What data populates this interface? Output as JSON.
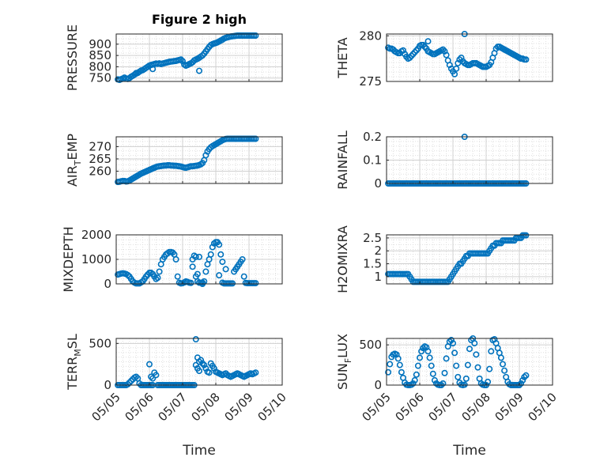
{
  "figure": {
    "title": "Figure 2 high",
    "xlabel": "Time",
    "time_ticks": [
      "05/05",
      "05/06",
      "05/07",
      "05/08",
      "05/09",
      "05/10"
    ],
    "marker_color": "#0072BD",
    "axes_color": "#262626",
    "grid_color": "#DFDFDF"
  },
  "chart_data": [
    {
      "type": "scatter",
      "panel": "pressure",
      "ylabel": "PRESSURE",
      "ylim": [
        735,
        945
      ],
      "yticks": [
        750,
        800,
        850,
        900
      ],
      "xlim": [
        0,
        5
      ],
      "grid": true,
      "x": [
        0.05,
        0.1,
        0.15,
        0.2,
        0.25,
        0.3,
        0.35,
        0.4,
        0.45,
        0.5,
        0.55,
        0.6,
        0.65,
        0.7,
        0.75,
        0.8,
        0.85,
        0.9,
        0.95,
        1.0,
        1.05,
        1.1,
        1.15,
        1.2,
        1.25,
        1.3,
        1.35,
        1.4,
        1.45,
        1.5,
        1.55,
        1.6,
        1.65,
        1.7,
        1.75,
        1.8,
        1.85,
        1.9,
        1.95,
        2.0,
        2.05,
        2.1,
        2.15,
        2.2,
        2.25,
        2.3,
        2.35,
        2.4,
        2.45,
        2.5,
        2.55,
        2.6,
        2.65,
        2.7,
        2.75,
        2.8,
        2.85,
        2.9,
        2.95,
        3.0,
        3.05,
        3.1,
        3.15,
        3.2,
        3.25,
        3.3,
        3.35,
        3.4,
        3.45,
        3.5,
        3.55,
        3.6,
        3.65,
        3.7,
        3.75,
        3.8,
        3.85,
        3.9,
        3.95,
        4.0,
        4.05,
        4.1,
        4.15,
        4.2,
        0.6,
        1.1,
        2.5
      ],
      "y": [
        744,
        742,
        745,
        748,
        752,
        748,
        746,
        750,
        756,
        760,
        765,
        770,
        773,
        778,
        783,
        785,
        790,
        795,
        800,
        805,
        808,
        810,
        812,
        814,
        813,
        815,
        812,
        814,
        816,
        818,
        820,
        822,
        823,
        824,
        825,
        826,
        828,
        830,
        832,
        825,
        810,
        805,
        808,
        812,
        815,
        820,
        828,
        832,
        835,
        840,
        845,
        850,
        858,
        868,
        878,
        888,
        896,
        900,
        903,
        905,
        908,
        912,
        916,
        920,
        925,
        928,
        930,
        932,
        934,
        935,
        936,
        937,
        938,
        938,
        938,
        938,
        938,
        938,
        938,
        938,
        938,
        938,
        938,
        938,
        772,
        790,
        782
      ]
    },
    {
      "type": "scatter",
      "panel": "theta",
      "ylabel": "THETA",
      "ylim": [
        275,
        280.2
      ],
      "yticks": [
        275,
        280
      ],
      "xlim": [
        0,
        5
      ],
      "grid": true,
      "x": [
        0.05,
        0.1,
        0.15,
        0.2,
        0.25,
        0.3,
        0.35,
        0.4,
        0.45,
        0.5,
        0.55,
        0.6,
        0.65,
        0.7,
        0.75,
        0.8,
        0.85,
        0.9,
        0.95,
        1.0,
        1.05,
        1.1,
        1.15,
        1.2,
        1.25,
        1.3,
        1.35,
        1.4,
        1.45,
        1.5,
        1.55,
        1.6,
        1.65,
        1.7,
        1.75,
        1.8,
        1.85,
        1.9,
        1.95,
        2.0,
        2.05,
        2.1,
        2.15,
        2.2,
        2.25,
        2.3,
        2.35,
        2.4,
        2.45,
        2.5,
        2.55,
        2.6,
        2.65,
        2.7,
        2.75,
        2.8,
        2.85,
        2.9,
        2.95,
        3.0,
        3.05,
        3.1,
        3.15,
        3.2,
        3.25,
        3.3,
        3.35,
        3.4,
        3.45,
        3.5,
        3.55,
        3.6,
        3.65,
        3.7,
        3.75,
        3.8,
        3.85,
        3.9,
        3.95,
        4.0,
        4.05,
        4.1,
        4.15,
        4.2,
        1.25,
        2.35
      ],
      "y": [
        278.7,
        278.6,
        278.6,
        278.5,
        278.3,
        278.2,
        278.1,
        278.1,
        278.3,
        278.4,
        278.0,
        277.7,
        277.5,
        277.6,
        277.8,
        278.0,
        278.2,
        278.4,
        278.6,
        278.9,
        279.0,
        279.0,
        278.8,
        278.6,
        278.3,
        278.2,
        278.1,
        278.0,
        278.0,
        278.1,
        278.2,
        278.3,
        278.4,
        278.5,
        278.3,
        277.9,
        277.3,
        276.8,
        276.4,
        276.1,
        275.8,
        276.4,
        277.0,
        277.4,
        277.6,
        277.2,
        277.0,
        276.9,
        276.8,
        276.8,
        276.9,
        277.0,
        277.0,
        277.0,
        276.9,
        276.8,
        276.7,
        276.6,
        276.6,
        276.6,
        276.7,
        276.8,
        277.1,
        277.6,
        278.1,
        278.6,
        278.8,
        278.8,
        278.7,
        278.6,
        278.5,
        278.4,
        278.3,
        278.2,
        278.1,
        278.0,
        277.9,
        277.8,
        277.7,
        277.6,
        277.5,
        277.5,
        277.4,
        277.4,
        279.4,
        280.2
      ]
    },
    {
      "type": "scatter",
      "panel": "air_temp",
      "ylabel": "AIR_TEMP",
      "ylim": [
        255,
        274
      ],
      "yticks": [
        260,
        265,
        270
      ],
      "xlim": [
        0,
        5
      ],
      "grid": true,
      "x": [
        0.05,
        0.1,
        0.15,
        0.2,
        0.25,
        0.3,
        0.35,
        0.4,
        0.45,
        0.5,
        0.55,
        0.6,
        0.65,
        0.7,
        0.75,
        0.8,
        0.85,
        0.9,
        0.95,
        1.0,
        1.05,
        1.1,
        1.15,
        1.2,
        1.25,
        1.3,
        1.35,
        1.4,
        1.45,
        1.5,
        1.55,
        1.6,
        1.65,
        1.7,
        1.75,
        1.8,
        1.85,
        1.9,
        1.95,
        2.0,
        2.05,
        2.1,
        2.15,
        2.2,
        2.25,
        2.3,
        2.35,
        2.4,
        2.45,
        2.5,
        2.55,
        2.6,
        2.65,
        2.7,
        2.75,
        2.8,
        2.85,
        2.9,
        2.95,
        3.0,
        3.05,
        3.1,
        3.15,
        3.2,
        3.25,
        3.3,
        3.35,
        3.4,
        3.45,
        3.5,
        3.55,
        3.6,
        3.65,
        3.7,
        3.75,
        3.8,
        3.85,
        3.9,
        3.95,
        4.0,
        4.05,
        4.1,
        4.15,
        4.2
      ],
      "y": [
        255.6,
        255.7,
        255.9,
        256.0,
        256.0,
        255.8,
        255.9,
        256.2,
        256.6,
        257.0,
        257.4,
        257.8,
        258.2,
        258.6,
        259.0,
        259.3,
        259.6,
        259.9,
        260.2,
        260.5,
        260.8,
        261.1,
        261.4,
        261.7,
        261.9,
        262.0,
        262.1,
        262.2,
        262.3,
        262.3,
        262.4,
        262.4,
        262.3,
        262.3,
        262.2,
        262.2,
        262.1,
        262.0,
        261.9,
        261.7,
        261.5,
        261.4,
        261.6,
        261.8,
        262.0,
        262.0,
        262.1,
        262.2,
        262.3,
        262.5,
        262.8,
        263.3,
        264.5,
        266.5,
        268.0,
        269.0,
        269.7,
        270.2,
        270.6,
        271.0,
        271.4,
        271.8,
        272.2,
        272.6,
        272.9,
        273.1,
        273.2,
        273.2,
        273.2,
        273.2,
        273.2,
        273.2,
        273.2,
        273.2,
        273.2,
        273.2,
        273.2,
        273.2,
        273.2,
        273.2,
        273.2,
        273.2,
        273.2,
        273.2
      ]
    },
    {
      "type": "scatter",
      "panel": "rainfall",
      "ylabel": "RAINFALL",
      "ylim": [
        0,
        0.2
      ],
      "yticks": [
        0,
        0.1,
        0.2
      ],
      "xlim": [
        0,
        5
      ],
      "grid": true,
      "note_outlier": [
        2.35,
        0.2
      ],
      "x_range_zero": [
        0.05,
        4.2
      ],
      "x": [
        2.35
      ],
      "y": [
        0.2
      ]
    },
    {
      "type": "scatter",
      "panel": "mixdepth",
      "ylabel": "MIXDEPTH",
      "ylim": [
        0,
        2000
      ],
      "yticks": [
        0,
        1000,
        2000
      ],
      "xlim": [
        0,
        5
      ],
      "grid": true,
      "x": [
        0.05,
        0.1,
        0.15,
        0.2,
        0.25,
        0.3,
        0.35,
        0.4,
        0.45,
        0.5,
        0.55,
        0.6,
        0.65,
        0.7,
        0.75,
        0.8,
        0.85,
        0.9,
        0.95,
        1.0,
        1.05,
        1.1,
        1.15,
        1.2,
        1.25,
        1.3,
        1.35,
        1.4,
        1.45,
        1.5,
        1.55,
        1.6,
        1.65,
        1.7,
        1.75,
        1.8,
        1.85,
        1.9,
        1.95,
        2.0,
        2.05,
        2.1,
        2.15,
        2.2,
        2.25,
        2.3,
        2.35,
        2.4,
        2.45,
        2.5,
        2.55,
        2.6,
        2.65,
        2.7,
        2.75,
        2.8,
        2.85,
        2.9,
        2.95,
        3.0,
        3.05,
        3.1,
        3.15,
        3.2,
        3.25,
        3.3,
        3.35,
        3.4,
        3.45,
        3.5,
        3.55,
        3.6,
        3.65,
        3.7,
        3.75,
        3.8,
        3.85,
        3.9,
        3.95,
        4.0,
        4.05,
        4.1,
        4.15,
        4.2,
        2.3,
        2.4,
        2.5,
        2.45,
        2.6,
        3.3,
        3.2,
        3.1
      ],
      "y": [
        380,
        400,
        420,
        430,
        420,
        400,
        360,
        300,
        200,
        100,
        50,
        20,
        20,
        20,
        60,
        100,
        200,
        300,
        380,
        450,
        450,
        400,
        300,
        200,
        250,
        500,
        800,
        1000,
        1100,
        1200,
        1250,
        1300,
        1300,
        1280,
        1200,
        1000,
        300,
        50,
        20,
        30,
        60,
        100,
        80,
        50,
        40,
        1000,
        1150,
        300,
        100,
        50,
        50,
        50,
        100,
        500,
        800,
        1000,
        1200,
        1500,
        1650,
        1700,
        1700,
        1600,
        1200,
        50,
        20,
        20,
        20,
        20,
        20,
        20,
        500,
        600,
        700,
        800,
        900,
        1000,
        300,
        40,
        30,
        30,
        30,
        30,
        30,
        30,
        700,
        1100,
        1100,
        400,
        0,
        600,
        900,
        350
      ]
    },
    {
      "type": "scatter",
      "panel": "h2omixra",
      "ylabel": "H2OMIXRA",
      "ylim": [
        0.72,
        2.62
      ],
      "yticks": [
        1,
        1.5,
        2,
        2.5
      ],
      "xlim": [
        0,
        5
      ],
      "grid": true,
      "x": [
        0.05,
        0.1,
        0.15,
        0.2,
        0.25,
        0.3,
        0.35,
        0.4,
        0.45,
        0.5,
        0.55,
        0.6,
        0.65,
        0.7,
        0.75,
        0.8,
        0.85,
        0.9,
        0.95,
        1.0,
        1.05,
        1.1,
        1.15,
        1.2,
        1.25,
        1.3,
        1.35,
        1.4,
        1.45,
        1.5,
        1.55,
        1.6,
        1.65,
        1.7,
        1.75,
        1.8,
        1.85,
        1.9,
        1.95,
        2.0,
        2.05,
        2.1,
        2.15,
        2.2,
        2.25,
        2.3,
        2.35,
        2.4,
        2.45,
        2.5,
        2.55,
        2.6,
        2.65,
        2.7,
        2.75,
        2.8,
        2.85,
        2.9,
        2.95,
        3.0,
        3.05,
        3.1,
        3.15,
        3.2,
        3.25,
        3.3,
        3.35,
        3.4,
        3.45,
        3.5,
        3.55,
        3.6,
        3.65,
        3.7,
        3.75,
        3.8,
        3.85,
        3.9,
        3.95,
        4.0,
        4.05,
        4.1,
        4.15,
        4.2
      ],
      "y": [
        1.1,
        1.1,
        1.1,
        1.1,
        1.1,
        1.1,
        1.1,
        1.1,
        1.1,
        1.1,
        1.1,
        1.1,
        1.1,
        1.0,
        0.9,
        0.8,
        0.8,
        0.8,
        0.8,
        0.8,
        0.8,
        0.8,
        0.8,
        0.8,
        0.8,
        0.8,
        0.8,
        0.8,
        0.8,
        0.8,
        0.8,
        0.8,
        0.8,
        0.8,
        0.8,
        0.8,
        0.8,
        0.9,
        1.0,
        1.1,
        1.2,
        1.3,
        1.4,
        1.5,
        1.5,
        1.6,
        1.7,
        1.8,
        1.8,
        1.9,
        1.9,
        1.9,
        1.9,
        1.9,
        1.9,
        1.9,
        1.9,
        1.9,
        1.9,
        1.9,
        1.9,
        2.0,
        2.1,
        2.2,
        2.2,
        2.3,
        2.3,
        2.3,
        2.3,
        2.4,
        2.4,
        2.4,
        2.4,
        2.4,
        2.4,
        2.4,
        2.4,
        2.5,
        2.5,
        2.5,
        2.5,
        2.6,
        2.6,
        2.6
      ]
    },
    {
      "type": "scatter",
      "panel": "terr_msl",
      "ylabel": "TERR_MSL",
      "ylim": [
        0,
        560
      ],
      "yticks": [
        0,
        500
      ],
      "xlim": [
        0,
        5
      ],
      "grid": true,
      "x": [
        0.05,
        0.1,
        0.15,
        0.2,
        0.25,
        0.3,
        0.35,
        0.4,
        0.45,
        0.5,
        0.55,
        0.6,
        0.65,
        0.7,
        0.75,
        0.8,
        0.85,
        0.9,
        0.95,
        1.0,
        1.05,
        1.1,
        1.15,
        1.2,
        1.25,
        1.3,
        1.35,
        1.4,
        1.45,
        1.5,
        1.55,
        1.6,
        1.65,
        1.7,
        1.75,
        1.8,
        1.85,
        1.9,
        1.95,
        2.0,
        2.05,
        2.1,
        2.15,
        2.2,
        2.25,
        2.3,
        2.35,
        2.4,
        2.45,
        2.5,
        2.55,
        2.6,
        2.65,
        2.7,
        2.75,
        2.8,
        2.85,
        2.9,
        2.95,
        3.0,
        3.05,
        3.1,
        3.15,
        3.2,
        3.25,
        3.3,
        3.35,
        3.4,
        3.45,
        3.5,
        3.55,
        3.6,
        3.65,
        3.7,
        3.75,
        3.8,
        3.85,
        3.9,
        3.95,
        4.0,
        4.05,
        4.1,
        4.15,
        4.2,
        1.0,
        1.05,
        1.1,
        2.4,
        2.45,
        2.5
      ],
      "y": [
        0,
        0,
        0,
        0,
        0,
        0,
        10,
        30,
        50,
        70,
        90,
        100,
        80,
        20,
        0,
        0,
        0,
        0,
        0,
        0,
        0,
        0,
        150,
        120,
        0,
        0,
        0,
        0,
        0,
        0,
        0,
        0,
        0,
        0,
        0,
        0,
        0,
        0,
        0,
        0,
        0,
        0,
        0,
        0,
        0,
        0,
        0,
        240,
        200,
        170,
        300,
        260,
        240,
        200,
        160,
        150,
        260,
        230,
        200,
        160,
        150,
        140,
        130,
        120,
        130,
        140,
        120,
        110,
        100,
        110,
        120,
        130,
        140,
        130,
        120,
        110,
        100,
        110,
        120,
        130,
        140,
        130,
        140,
        150,
        250,
        100,
        80,
        550,
        330,
        280
      ]
    },
    {
      "type": "scatter",
      "panel": "sun_flux",
      "ylabel": "SUN_FLUX",
      "ylim": [
        0,
        580
      ],
      "yticks": [
        0,
        500
      ],
      "xlim": [
        0,
        5
      ],
      "grid": true,
      "x": [
        0.05,
        0.1,
        0.15,
        0.2,
        0.25,
        0.3,
        0.35,
        0.4,
        0.45,
        0.5,
        0.55,
        0.6,
        0.65,
        0.7,
        0.75,
        0.8,
        0.85,
        0.9,
        0.95,
        1.0,
        1.05,
        1.1,
        1.15,
        1.2,
        1.25,
        1.3,
        1.35,
        1.4,
        1.45,
        1.5,
        1.55,
        1.6,
        1.65,
        1.7,
        1.75,
        1.8,
        1.85,
        1.9,
        1.95,
        2.0,
        2.05,
        2.1,
        2.15,
        2.2,
        2.25,
        2.3,
        2.35,
        2.4,
        2.45,
        2.5,
        2.55,
        2.6,
        2.65,
        2.7,
        2.75,
        2.8,
        2.85,
        2.9,
        2.95,
        3.0,
        3.05,
        3.1,
        3.15,
        3.2,
        3.25,
        3.3,
        3.35,
        3.4,
        3.45,
        3.5,
        3.55,
        3.6,
        3.65,
        3.7,
        3.75,
        3.8,
        3.85,
        3.9,
        3.95,
        4.0,
        4.05,
        4.1,
        4.15,
        4.2
      ],
      "y": [
        160,
        260,
        350,
        380,
        390,
        380,
        330,
        250,
        160,
        90,
        30,
        5,
        0,
        0,
        5,
        20,
        60,
        130,
        240,
        340,
        420,
        460,
        480,
        470,
        420,
        340,
        240,
        140,
        60,
        20,
        5,
        0,
        0,
        20,
        150,
        330,
        480,
        540,
        560,
        520,
        400,
        240,
        100,
        30,
        5,
        0,
        5,
        80,
        250,
        450,
        560,
        580,
        520,
        380,
        220,
        80,
        20,
        5,
        0,
        0,
        40,
        200,
        420,
        560,
        570,
        520,
        460,
        400,
        340,
        260,
        180,
        100,
        40,
        10,
        0,
        0,
        0,
        0,
        0,
        0,
        20,
        60,
        100,
        120
      ]
    }
  ]
}
